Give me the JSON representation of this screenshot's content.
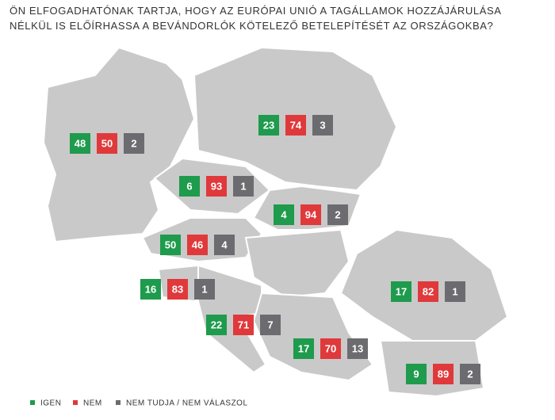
{
  "title": [
    "ÖN ELFOGADHATÓNAK TARTJA, HOGY AZ EURÓPAI UNIÓ A TAGÁLLAMOK HOZZÁJÁRULÁSA",
    "NÉLKÜL IS ELŐÍRHASSA A BEVÁNDORLÓK KÖTELEZŐ BETELEPÍTÉSÉT AZ ORSZÁGOKBA?"
  ],
  "legend": [
    {
      "label": "IGEN",
      "color": "#1e9b4c"
    },
    {
      "label": "NEM",
      "color": "#e0393b"
    },
    {
      "label": "NEM TUDJA / NEM VÁLASZOL",
      "color": "#6c6c70"
    }
  ],
  "regions": [
    {
      "values": [
        48,
        50,
        2
      ]
    },
    {
      "values": [
        23,
        74,
        3
      ]
    },
    {
      "values": [
        6,
        93,
        1
      ]
    },
    {
      "values": [
        4,
        94,
        2
      ]
    },
    {
      "values": [
        50,
        46,
        4
      ]
    },
    {
      "values": [
        16,
        83,
        1
      ]
    },
    {
      "values": [
        22,
        71,
        7
      ]
    },
    {
      "values": [
        17,
        70,
        13
      ]
    },
    {
      "values": [
        17,
        82,
        1
      ]
    },
    {
      "values": [
        9,
        89,
        2
      ]
    }
  ]
}
